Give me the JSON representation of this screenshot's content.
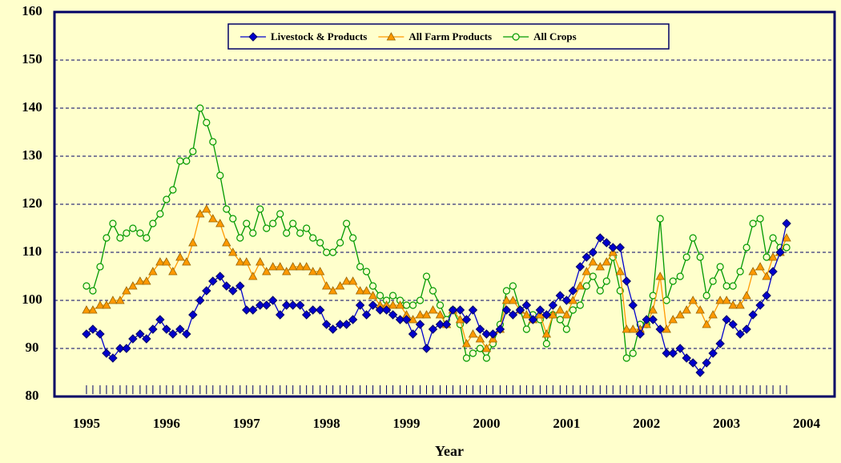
{
  "chart_data": {
    "type": "line",
    "xlabel": "Year",
    "x": [
      1995,
      1995.08,
      1995.17,
      1995.25,
      1995.33,
      1995.42,
      1995.5,
      1995.58,
      1995.67,
      1995.75,
      1995.83,
      1995.92,
      1996,
      1996.08,
      1996.17,
      1996.25,
      1996.33,
      1996.42,
      1996.5,
      1996.58,
      1996.67,
      1996.75,
      1996.83,
      1996.92,
      1997,
      1997.08,
      1997.17,
      1997.25,
      1997.33,
      1997.42,
      1997.5,
      1997.58,
      1997.67,
      1997.75,
      1997.83,
      1997.92,
      1998,
      1998.08,
      1998.17,
      1998.25,
      1998.33,
      1998.42,
      1998.5,
      1998.58,
      1998.67,
      1998.75,
      1998.83,
      1998.92,
      1999,
      1999.08,
      1999.17,
      1999.25,
      1999.33,
      1999.42,
      1999.5,
      1999.58,
      1999.67,
      1999.75,
      1999.83,
      1999.92,
      2000,
      2000.08,
      2000.17,
      2000.25,
      2000.33,
      2000.42,
      2000.5,
      2000.58,
      2000.67,
      2000.75,
      2000.83,
      2000.92,
      2001,
      2001.08,
      2001.17,
      2001.25,
      2001.33,
      2001.42,
      2001.5,
      2001.58,
      2001.67,
      2001.75,
      2001.83,
      2001.92,
      2002,
      2002.08,
      2002.17,
      2002.25,
      2002.33,
      2002.42,
      2002.5,
      2002.58,
      2002.67,
      2002.75,
      2002.83,
      2002.92,
      2003,
      2003.08,
      2003.17,
      2003.25,
      2003.33,
      2003.42,
      2003.5,
      2003.58,
      2003.67,
      2003.75
    ],
    "series": [
      {
        "name": "Livestock & Products",
        "color": "#0000cc",
        "marker": "diamond",
        "values": [
          93,
          94,
          93,
          89,
          88,
          90,
          90,
          92,
          93,
          92,
          94,
          96,
          94,
          93,
          94,
          93,
          97,
          100,
          102,
          104,
          105,
          103,
          102,
          103,
          98,
          98,
          99,
          99,
          100,
          97,
          99,
          99,
          99,
          97,
          98,
          98,
          95,
          94,
          95,
          95,
          96,
          99,
          97,
          99,
          98,
          98,
          97,
          96,
          96,
          93,
          95,
          90,
          94,
          95,
          95,
          98,
          98,
          96,
          98,
          94,
          93,
          93,
          94,
          98,
          97,
          98,
          99,
          96,
          98,
          97,
          99,
          101,
          100,
          102,
          107,
          109,
          110,
          113,
          112,
          111,
          111,
          104,
          99,
          93,
          96,
          96,
          94,
          89,
          89,
          90,
          88,
          87,
          85,
          87,
          89,
          91,
          96,
          95,
          93,
          94,
          97,
          99,
          101,
          106,
          110,
          116
        ]
      },
      {
        "name": "All Farm Products",
        "color": "#ff9900",
        "marker": "triangle",
        "values": [
          98,
          98,
          99,
          99,
          100,
          100,
          102,
          103,
          104,
          104,
          106,
          108,
          108,
          106,
          109,
          108,
          112,
          118,
          119,
          117,
          116,
          112,
          110,
          108,
          108,
          105,
          108,
          106,
          107,
          107,
          106,
          107,
          107,
          107,
          106,
          106,
          103,
          102,
          103,
          104,
          104,
          102,
          102,
          101,
          99,
          99,
          99,
          99,
          97,
          96,
          97,
          97,
          98,
          97,
          95,
          98,
          96,
          91,
          93,
          92,
          90,
          92,
          94,
          100,
          100,
          98,
          97,
          96,
          97,
          93,
          97,
          98,
          97,
          100,
          103,
          106,
          108,
          107,
          108,
          110,
          106,
          94,
          94,
          94,
          95,
          98,
          105,
          94,
          96,
          97,
          98,
          100,
          98,
          95,
          97,
          100,
          100,
          99,
          99,
          101,
          106,
          107,
          105,
          109,
          110,
          113
        ]
      },
      {
        "name": "All Crops",
        "color": "#009900",
        "marker": "circle",
        "values": [
          103,
          102,
          107,
          113,
          116,
          113,
          114,
          115,
          114,
          113,
          116,
          118,
          121,
          123,
          129,
          129,
          131,
          140,
          137,
          133,
          126,
          119,
          117,
          113,
          116,
          114,
          119,
          115,
          116,
          118,
          114,
          116,
          114,
          115,
          113,
          112,
          110,
          110,
          112,
          116,
          113,
          107,
          106,
          103,
          101,
          100,
          101,
          100,
          99,
          99,
          100,
          105,
          102,
          99,
          96,
          98,
          95,
          88,
          89,
          90,
          88,
          91,
          95,
          102,
          103,
          98,
          94,
          97,
          96,
          91,
          97,
          96,
          94,
          98,
          99,
          103,
          105,
          102,
          104,
          109,
          102,
          88,
          89,
          95,
          95,
          101,
          117,
          100,
          104,
          105,
          109,
          113,
          109,
          101,
          104,
          107,
          103,
          103,
          106,
          111,
          116,
          117,
          109,
          113,
          111,
          111
        ]
      }
    ],
    "xlim": [
      1994.6,
      2004.35
    ],
    "xticks": [
      1995,
      1996,
      1997,
      1998,
      1999,
      2000,
      2001,
      2002,
      2003,
      2004
    ],
    "ylim": [
      80,
      160
    ],
    "yticks": [
      80,
      90,
      100,
      110,
      120,
      130,
      140,
      150,
      160
    ],
    "grid": true,
    "legend": "top"
  }
}
